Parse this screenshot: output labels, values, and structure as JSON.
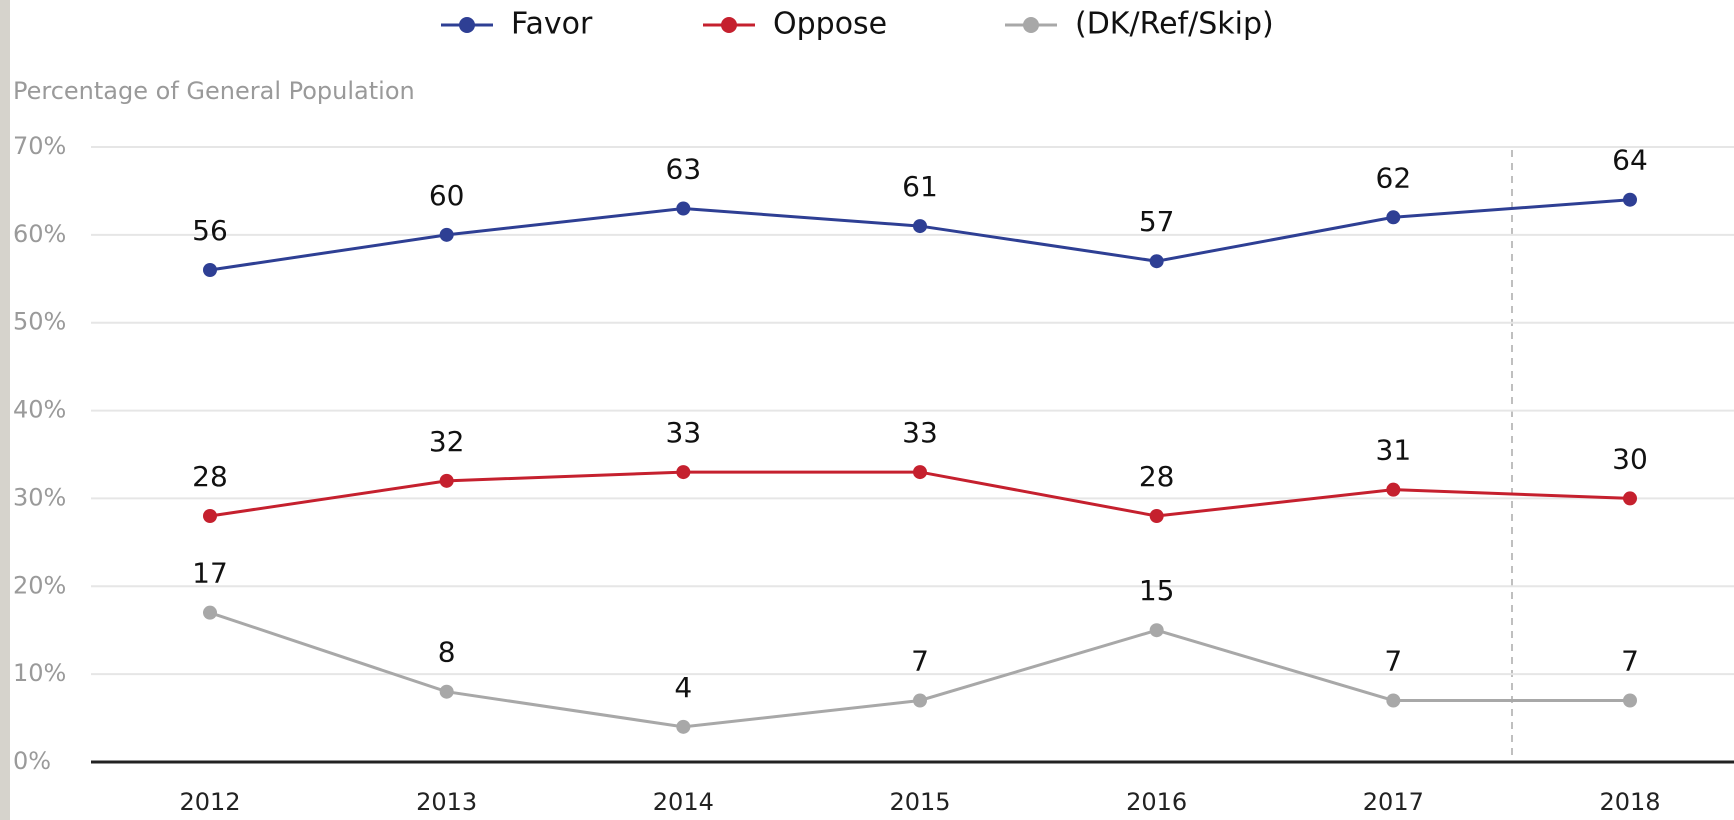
{
  "chart_data": {
    "type": "line",
    "ylabel": "Percentage of General Population",
    "categories": [
      "2012",
      "2013",
      "2014",
      "2015",
      "2016",
      "2017",
      "2018"
    ],
    "series": [
      {
        "name": "Favor",
        "color": "#2e3f94",
        "values": [
          56,
          60,
          63,
          61,
          57,
          62,
          64
        ]
      },
      {
        "name": "Oppose",
        "color": "#c5202e",
        "values": [
          28,
          32,
          33,
          33,
          28,
          31,
          30
        ]
      },
      {
        "name": "(DK/Ref/Skip)",
        "color": "#a8a8a8",
        "values": [
          17,
          8,
          4,
          7,
          15,
          7,
          7
        ]
      }
    ],
    "ylim": [
      0,
      70
    ],
    "yticks": [
      {
        "value": 0,
        "label": "0%"
      },
      {
        "value": 10,
        "label": "10%"
      },
      {
        "value": 20,
        "label": "20%"
      },
      {
        "value": 30,
        "label": "30%"
      },
      {
        "value": 40,
        "label": "40%"
      },
      {
        "value": 50,
        "label": "50%"
      },
      {
        "value": 60,
        "label": "60%"
      },
      {
        "value": 70,
        "label": "70%"
      }
    ],
    "grid": true,
    "legend": "top"
  }
}
